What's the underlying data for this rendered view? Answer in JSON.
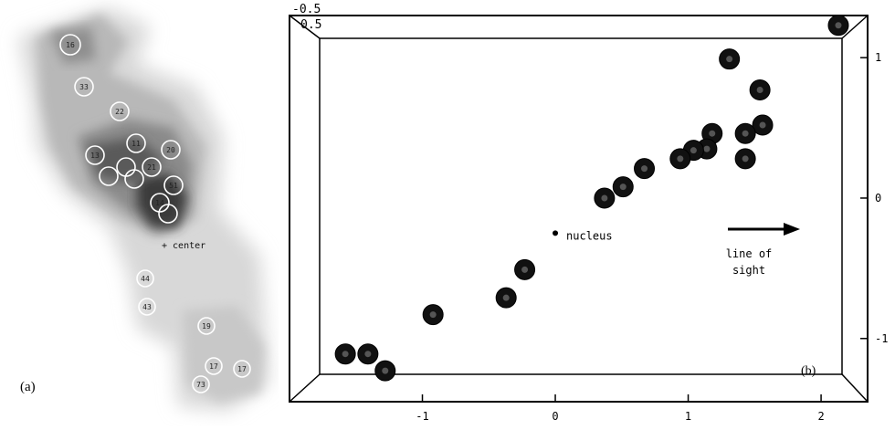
{
  "panel_a": {
    "label": "(a)",
    "center_label": "+ center",
    "circle_labels": [
      "16",
      "33",
      "22",
      "13",
      "11",
      "20",
      "21",
      "51",
      "14",
      "44",
      "43",
      "19",
      "17",
      "17",
      "73"
    ]
  },
  "chart_data": {
    "type": "scatter",
    "panel_label": "(b)",
    "corner_labels": [
      "-0.5",
      "0.5"
    ],
    "x_ticks": [
      -1,
      0,
      1,
      2
    ],
    "y_ticks": [
      -1,
      0,
      1
    ],
    "xlim": [
      -2.0,
      2.35
    ],
    "ylim": [
      -1.45,
      1.3
    ],
    "nucleus": {
      "x": 0.0,
      "y": -0.25,
      "label": "nucleus"
    },
    "line_of_sight": {
      "line1": "line of",
      "line2": "sight"
    },
    "points": [
      {
        "x": 2.13,
        "y": 1.23
      },
      {
        "x": 1.31,
        "y": 0.99
      },
      {
        "x": 1.54,
        "y": 0.77
      },
      {
        "x": 1.56,
        "y": 0.52
      },
      {
        "x": 1.43,
        "y": 0.46
      },
      {
        "x": 1.43,
        "y": 0.28
      },
      {
        "x": 1.18,
        "y": 0.46
      },
      {
        "x": 1.14,
        "y": 0.35
      },
      {
        "x": 1.04,
        "y": 0.34
      },
      {
        "x": 0.94,
        "y": 0.28
      },
      {
        "x": 0.67,
        "y": 0.21
      },
      {
        "x": 0.51,
        "y": 0.08
      },
      {
        "x": 0.37,
        "y": 0.0
      },
      {
        "x": -0.23,
        "y": -0.51
      },
      {
        "x": -0.37,
        "y": -0.71
      },
      {
        "x": -0.92,
        "y": -0.83
      },
      {
        "x": -1.58,
        "y": -1.11
      },
      {
        "x": -1.41,
        "y": -1.11
      },
      {
        "x": -1.28,
        "y": -1.23
      }
    ]
  }
}
